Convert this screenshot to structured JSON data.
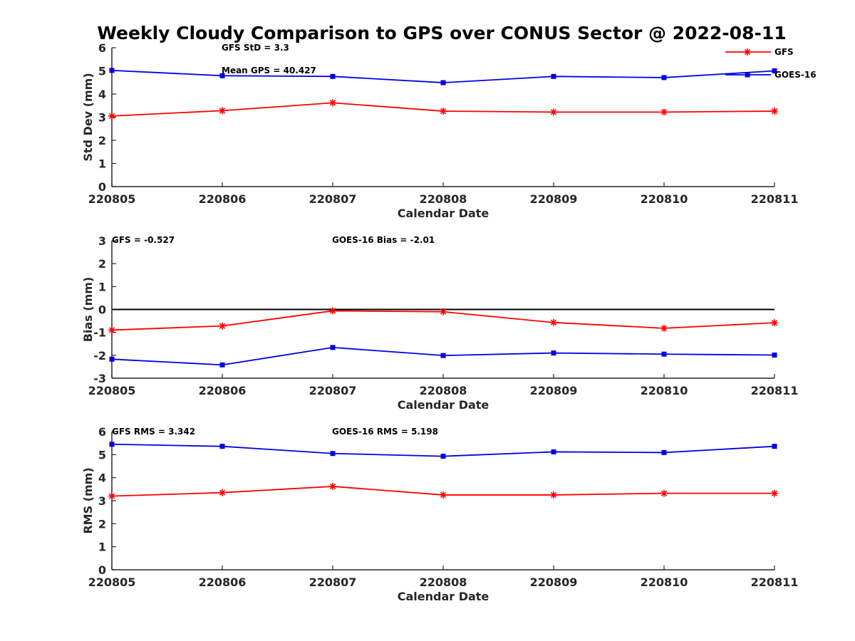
{
  "figure_title": "Weekly Cloudy Comparison to GPS over CONUS Sector @ 2022-08-11",
  "colors": {
    "GFS": "#ff0000",
    "GOES-16": "#0000e6",
    "axis": "#262626",
    "zero_line": "#000000"
  },
  "legend": {
    "placement": "top-right of first panel",
    "items": [
      "GFS",
      "GOES-16"
    ]
  },
  "chart_data": [
    {
      "type": "line",
      "x": [
        "220805",
        "220806",
        "220807",
        "220808",
        "220809",
        "220810",
        "220811"
      ],
      "xlabel": "Calendar Date",
      "ylabel": "Std Dev (mm)",
      "ylim": [
        0,
        6
      ],
      "yticks": [
        "0",
        "1",
        "2",
        "3",
        "4",
        "5",
        "6"
      ],
      "grid": false,
      "series": [
        {
          "name": "GFS",
          "marker": "asterisk",
          "values": [
            3.05,
            3.28,
            3.62,
            3.26,
            3.22,
            3.22,
            3.26
          ]
        },
        {
          "name": "GOES-16",
          "marker": "square",
          "values": [
            5.02,
            4.79,
            4.76,
            4.49,
            4.76,
            4.71,
            5.0
          ]
        }
      ],
      "annotations": [
        "GFS StD = 3.3",
        "Mean GPS = 40.427"
      ]
    },
    {
      "type": "line",
      "x": [
        "220805",
        "220806",
        "220807",
        "220808",
        "220809",
        "220810",
        "220811"
      ],
      "xlabel": "Calendar Date",
      "ylabel": "Bias (mm)",
      "ylim": [
        -3,
        3
      ],
      "yticks": [
        "-3",
        "-2",
        "-1",
        "0",
        "1",
        "2",
        "3"
      ],
      "grid": false,
      "reference_line": 0,
      "series": [
        {
          "name": "GFS",
          "marker": "asterisk",
          "values": [
            -0.9,
            -0.72,
            -0.06,
            -0.1,
            -0.57,
            -0.82,
            -0.58
          ]
        },
        {
          "name": "GOES-16",
          "marker": "square",
          "values": [
            -2.17,
            -2.42,
            -1.66,
            -2.01,
            -1.9,
            -1.95,
            -1.99
          ]
        }
      ],
      "annotations": [
        "GFS = -0.527",
        "GOES-16 Bias  = -2.01"
      ]
    },
    {
      "type": "line",
      "x": [
        "220805",
        "220806",
        "220807",
        "220808",
        "220809",
        "220810",
        "220811"
      ],
      "xlabel": "Calendar Date",
      "ylabel": "RMS (mm)",
      "ylim": [
        0,
        6
      ],
      "yticks": [
        "0",
        "1",
        "2",
        "3",
        "4",
        "5",
        "6"
      ],
      "grid": false,
      "series": [
        {
          "name": "GFS",
          "marker": "asterisk",
          "values": [
            3.2,
            3.35,
            3.62,
            3.25,
            3.25,
            3.32,
            3.32
          ]
        },
        {
          "name": "GOES-16",
          "marker": "square",
          "values": [
            5.45,
            5.36,
            5.05,
            4.93,
            5.12,
            5.09,
            5.36
          ]
        }
      ],
      "annotations": [
        "GFS RMS = 3.342",
        "GOES-16 RMS = 5.198"
      ]
    }
  ]
}
